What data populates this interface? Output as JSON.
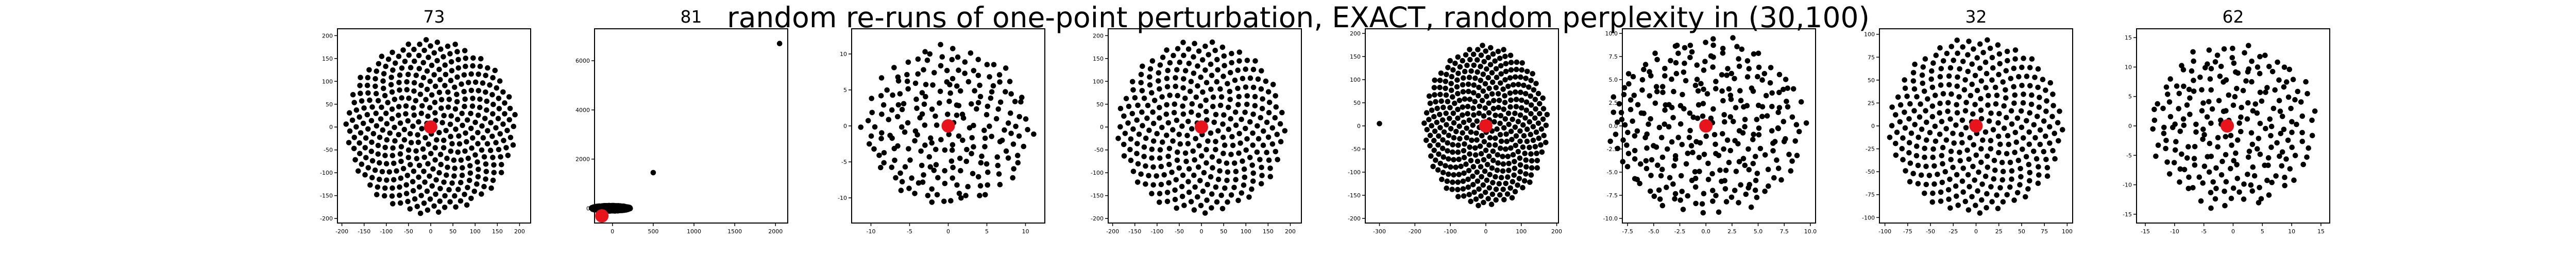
{
  "title": "random re-runs of one-point perturbation, EXACT, random perplexity in (30,100)",
  "colors": {
    "points": "#000000",
    "highlight": "#e8141b",
    "frame": "#000000",
    "background": "#ffffff"
  },
  "chart_data": [
    {
      "type": "scatter",
      "title": "73",
      "layout": "phyllotaxis",
      "n_points": 400,
      "radius": 192,
      "center": [
        0,
        0
      ],
      "xlim": [
        -210,
        225
      ],
      "ylim": [
        -210,
        215
      ],
      "xticks": [
        "-200",
        "-150",
        "-100",
        "-50",
        "0",
        "50",
        "100",
        "150",
        "200"
      ],
      "yticks": [
        "-200",
        "-150",
        "-100",
        "-50",
        "0",
        "50",
        "100",
        "150",
        "200"
      ],
      "highlight_point": [
        0,
        0
      ],
      "grid": false
    },
    {
      "type": "scatter",
      "title": "81",
      "layout": "blob",
      "n_points": 1500,
      "blob_center": [
        -20,
        0
      ],
      "blob_half_width": [
        240,
        110
      ],
      "xlim": [
        -220,
        2150
      ],
      "ylim": [
        -600,
        7300
      ],
      "xticks": [
        "-500",
        "0",
        "500",
        "1000",
        "1500",
        "2000"
      ],
      "yticks": [
        "0",
        "2000",
        "4000",
        "6000"
      ],
      "outliers": [
        [
          2050,
          6700
        ],
        [
          500,
          1450
        ]
      ],
      "highlight_point": [
        -130,
        -310
      ],
      "grid": false
    },
    {
      "type": "scatter",
      "title": "",
      "layout": "phyllotaxis-jittered",
      "n_points": 220,
      "radius": 11,
      "center": [
        0,
        0
      ],
      "xlim": [
        -12.5,
        12.5
      ],
      "ylim": [
        -13.5,
        13.5
      ],
      "xticks": [
        "-10",
        "-5",
        "0",
        "5",
        "10"
      ],
      "yticks": [
        "-10",
        "-5",
        "0",
        "5",
        "10"
      ],
      "highlight_point": [
        0,
        0
      ],
      "grid": false
    },
    {
      "type": "scatter",
      "title": "",
      "layout": "phyllotaxis",
      "n_points": 330,
      "radius": 190,
      "center": [
        0,
        0
      ],
      "xlim": [
        -210,
        225
      ],
      "ylim": [
        -210,
        215
      ],
      "xticks": [
        "-200",
        "-150",
        "-100",
        "-50",
        "0",
        "50",
        "100",
        "150",
        "200"
      ],
      "yticks": [
        "-200",
        "-150",
        "-100",
        "-50",
        "0",
        "50",
        "100",
        "150",
        "200"
      ],
      "highlight_point": [
        0,
        0
      ],
      "grid": false
    },
    {
      "type": "scatter",
      "title": "",
      "layout": "phyllotaxis",
      "n_points": 400,
      "radius": 175,
      "center": [
        0,
        0
      ],
      "xlim": [
        -340,
        205
      ],
      "ylim": [
        -210,
        210
      ],
      "xticks": [
        "-300",
        "-200",
        "-100",
        "0",
        "100",
        "200"
      ],
      "yticks": [
        "-200",
        "-150",
        "-100",
        "-50",
        "0",
        "50",
        "100",
        "150",
        "200"
      ],
      "outliers": [
        [
          -300,
          5
        ]
      ],
      "highlight_point": [
        0,
        0
      ],
      "grid": false
    },
    {
      "type": "scatter",
      "title": "",
      "layout": "phyllotaxis-jittered",
      "n_points": 300,
      "radius": 9.5,
      "center": [
        0,
        0
      ],
      "xlim": [
        -8,
        10.5
      ],
      "ylim": [
        -10.5,
        10.5
      ],
      "xticks": [
        "-7.5",
        "-5.0",
        "-2.5",
        "0.0",
        "2.5",
        "5.0",
        "7.5",
        "10.0"
      ],
      "yticks": [
        "-10.0",
        "-7.5",
        "-5.0",
        "-2.5",
        "0.0",
        "2.5",
        "5.0",
        "7.5",
        "10.0"
      ],
      "highlight_point": [
        0,
        0
      ],
      "grid": false
    },
    {
      "type": "scatter",
      "title": "32",
      "layout": "phyllotaxis",
      "n_points": 330,
      "radius": 96,
      "center": [
        0,
        0
      ],
      "xlim": [
        -106,
        106
      ],
      "ylim": [
        -106,
        106
      ],
      "xticks": [
        "-100",
        "-75",
        "-50",
        "-25",
        "0",
        "25",
        "50",
        "75",
        "100"
      ],
      "yticks": [
        "-100",
        "-75",
        "-50",
        "-25",
        "0",
        "25",
        "50",
        "75",
        "100"
      ],
      "highlight_point": [
        0,
        0
      ],
      "grid": false
    },
    {
      "type": "scatter",
      "title": "62",
      "layout": "phyllotaxis-jittered",
      "n_points": 230,
      "radius": 14,
      "center": [
        0,
        0
      ],
      "xlim": [
        -16.5,
        16.5
      ],
      "ylim": [
        -16.5,
        16.5
      ],
      "xticks": [
        "-15",
        "-10",
        "-5",
        "0",
        "5",
        "10",
        "15"
      ],
      "yticks": [
        "-15",
        "-10",
        "-5",
        "0",
        "5",
        "10",
        "15"
      ],
      "highlight_point": [
        -1,
        0
      ],
      "grid": false
    }
  ]
}
